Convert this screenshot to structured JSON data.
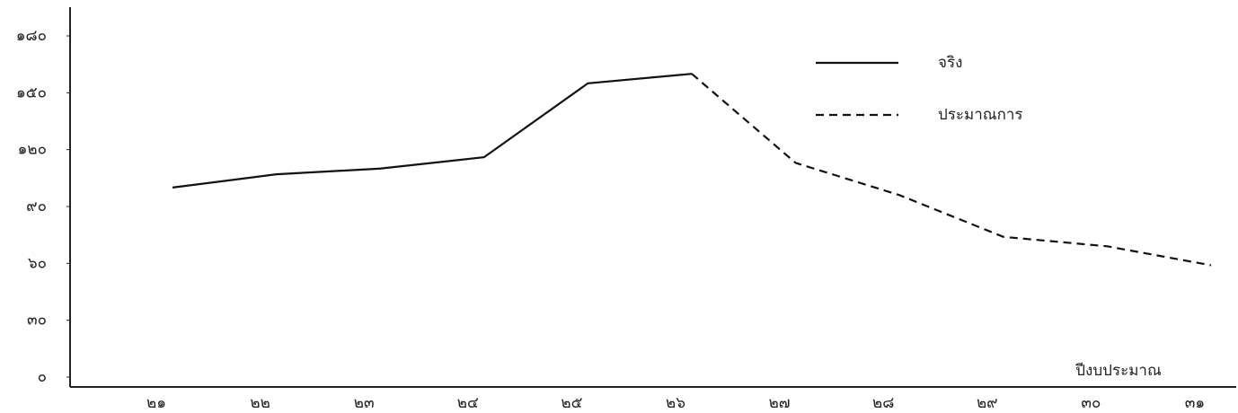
{
  "chart_data": {
    "type": "line",
    "x_label": "ปีงบประมาณ",
    "categories": [
      "๒๑",
      "๒๒",
      "๒๓",
      "๒๔",
      "๒๕",
      "๒๖",
      "๒๗",
      "๒๘",
      "๒๙",
      "๓๐",
      "๓๑"
    ],
    "series": [
      {
        "name": "จริง",
        "color": "#111111",
        "style": "solid",
        "values": [
          100,
          107,
          110,
          116,
          155,
          160,
          null,
          null,
          null,
          null,
          null
        ]
      },
      {
        "name": "ประมาณการ",
        "color": "#111111",
        "style": "dashed",
        "values": [
          null,
          null,
          null,
          null,
          null,
          160,
          113,
          96,
          74,
          69,
          59
        ]
      }
    ],
    "ylim": [
      0,
      180
    ],
    "yticks": [
      {
        "value": 0,
        "label": "๐"
      },
      {
        "value": 30,
        "label": "๓๐"
      },
      {
        "value": 60,
        "label": "๖๐"
      },
      {
        "value": 90,
        "label": "๙๐"
      },
      {
        "value": 120,
        "label": "๑๒๐"
      },
      {
        "value": 150,
        "label": "๑๕๐"
      },
      {
        "value": 180,
        "label": "๑๘๐"
      }
    ],
    "grid": false,
    "legend": "upper right"
  }
}
